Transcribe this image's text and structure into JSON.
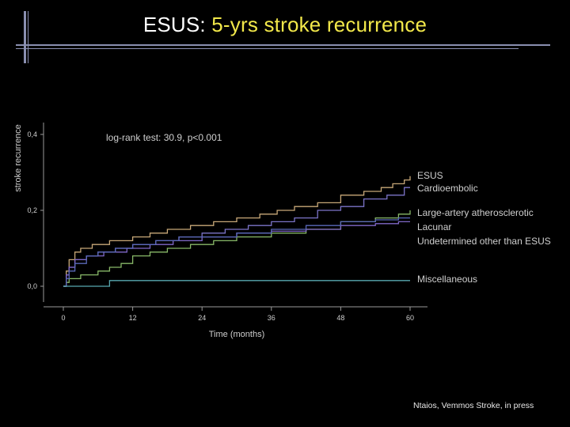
{
  "slide": {
    "title_prefix": "ESUS: ",
    "title_highlight": "5-yrs stroke recurrence",
    "credit": "Ntaios, Vemmos Stroke, in press"
  },
  "colors": {
    "background": "#000000",
    "title_highlight": "#f2e84a",
    "axis": "#9a9a9a",
    "text": "#cfcfcf"
  },
  "chart_data": {
    "type": "line",
    "step": true,
    "xlabel": "Time (months)",
    "ylabel": "stroke recurrence",
    "xlim": [
      0,
      60
    ],
    "ylim": [
      0,
      0.4
    ],
    "xticks": [
      0,
      12,
      24,
      36,
      48,
      60
    ],
    "xtick_labels": [
      "0",
      "12",
      "24",
      "36",
      "48",
      "60"
    ],
    "yticks": [
      0,
      0.2,
      0.4
    ],
    "ytick_labels": [
      "0,0",
      "0,2",
      "0,4"
    ],
    "grid": false,
    "legend_placement": "right of lines",
    "annotation": "log-rank test: 30.9, p<0.001",
    "series": [
      {
        "name": "ESUS",
        "color": "#c8a878",
        "points": [
          [
            0,
            0
          ],
          [
            0.5,
            0.04
          ],
          [
            1,
            0.07
          ],
          [
            2,
            0.09
          ],
          [
            3,
            0.1
          ],
          [
            5,
            0.11
          ],
          [
            8,
            0.12
          ],
          [
            9,
            0.12
          ],
          [
            10,
            0.12
          ],
          [
            12,
            0.13
          ],
          [
            15,
            0.14
          ],
          [
            18,
            0.15
          ],
          [
            22,
            0.16
          ],
          [
            26,
            0.17
          ],
          [
            30,
            0.18
          ],
          [
            34,
            0.19
          ],
          [
            37,
            0.2
          ],
          [
            40,
            0.21
          ],
          [
            44,
            0.22
          ],
          [
            48,
            0.24
          ],
          [
            52,
            0.25
          ],
          [
            55,
            0.26
          ],
          [
            57,
            0.27
          ],
          [
            59,
            0.28
          ],
          [
            60,
            0.29
          ]
        ]
      },
      {
        "name": "Cardioembolic",
        "color": "#7c74c8",
        "points": [
          [
            0,
            0
          ],
          [
            0.5,
            0.03
          ],
          [
            1,
            0.05
          ],
          [
            2,
            0.07
          ],
          [
            4,
            0.08
          ],
          [
            6,
            0.09
          ],
          [
            9,
            0.1
          ],
          [
            12,
            0.11
          ],
          [
            16,
            0.12
          ],
          [
            20,
            0.13
          ],
          [
            24,
            0.14
          ],
          [
            28,
            0.15
          ],
          [
            32,
            0.16
          ],
          [
            36,
            0.17
          ],
          [
            40,
            0.18
          ],
          [
            44,
            0.2
          ],
          [
            48,
            0.21
          ],
          [
            52,
            0.23
          ],
          [
            56,
            0.24
          ],
          [
            59,
            0.26
          ],
          [
            60,
            0.26
          ]
        ]
      },
      {
        "name": "Large-artery atherosclerotic",
        "color": "#88b868",
        "points": [
          [
            0,
            0
          ],
          [
            0.5,
            0.01
          ],
          [
            1,
            0.02
          ],
          [
            3,
            0.03
          ],
          [
            6,
            0.04
          ],
          [
            8,
            0.05
          ],
          [
            10,
            0.06
          ],
          [
            12,
            0.08
          ],
          [
            15,
            0.09
          ],
          [
            18,
            0.1
          ],
          [
            22,
            0.11
          ],
          [
            26,
            0.12
          ],
          [
            30,
            0.13
          ],
          [
            36,
            0.14
          ],
          [
            42,
            0.15
          ],
          [
            48,
            0.17
          ],
          [
            54,
            0.18
          ],
          [
            58,
            0.19
          ],
          [
            60,
            0.2
          ]
        ]
      },
      {
        "name": "Lacunar",
        "color": "#8068c8",
        "points": [
          [
            0,
            0
          ],
          [
            0.5,
            0.03
          ],
          [
            1,
            0.05
          ],
          [
            2,
            0.07
          ],
          [
            4,
            0.08
          ],
          [
            7,
            0.09
          ],
          [
            11,
            0.1
          ],
          [
            15,
            0.11
          ],
          [
            19,
            0.12
          ],
          [
            24,
            0.13
          ],
          [
            30,
            0.14
          ],
          [
            36,
            0.145
          ],
          [
            42,
            0.15
          ],
          [
            48,
            0.16
          ],
          [
            54,
            0.165
          ],
          [
            58,
            0.17
          ],
          [
            60,
            0.17
          ]
        ]
      },
      {
        "name": "Undetermined other than ESUS",
        "color": "#5a68b8",
        "points": [
          [
            0,
            0
          ],
          [
            0.5,
            0.02
          ],
          [
            1,
            0.04
          ],
          [
            2,
            0.06
          ],
          [
            4,
            0.08
          ],
          [
            6,
            0.09
          ],
          [
            9,
            0.1
          ],
          [
            12,
            0.11
          ],
          [
            16,
            0.12
          ],
          [
            20,
            0.13
          ],
          [
            24,
            0.13
          ],
          [
            30,
            0.14
          ],
          [
            36,
            0.15
          ],
          [
            42,
            0.16
          ],
          [
            48,
            0.17
          ],
          [
            54,
            0.175
          ],
          [
            58,
            0.18
          ],
          [
            60,
            0.18
          ]
        ]
      },
      {
        "name": "Miscellaneous",
        "color": "#58a8b0",
        "points": [
          [
            0,
            0
          ],
          [
            8,
            0
          ],
          [
            8,
            0.015
          ],
          [
            60,
            0.015
          ]
        ]
      }
    ]
  }
}
